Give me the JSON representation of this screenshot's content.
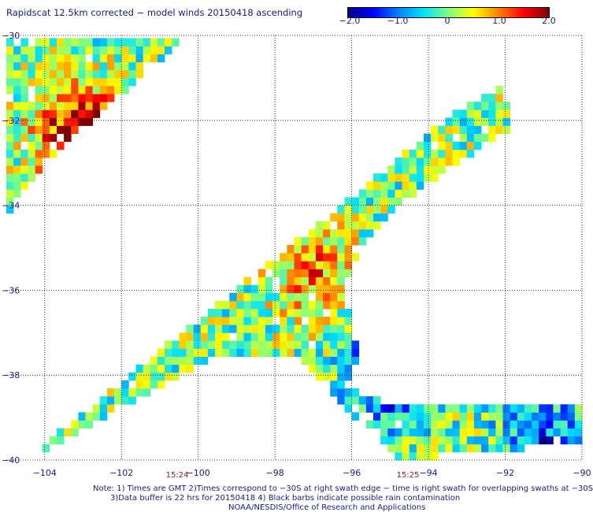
{
  "title": "Rapidscat 12.5km corrected − model winds 20150418 ascending",
  "colorbar": {
    "ticks": [
      "−2.0",
      "−1.0",
      "0",
      "1.0",
      "2.0"
    ],
    "range": [
      -2.0,
      2.0
    ],
    "colors": [
      "#00007f",
      "#0000ff",
      "#0080ff",
      "#00e0ff",
      "#80ff80",
      "#ffff00",
      "#ff8000",
      "#ff0000",
      "#7f0000"
    ]
  },
  "time_labels": [
    "15:24",
    "15:25"
  ],
  "notes": [
    "Note: 1) Times are GMT 2)Times correspond to −30S at right swath edge − time is right swath for overlapping swaths at −30S",
    "3)Data buffer is 22 hrs for 20150418 4) Black barbs indicate possible rain contamination",
    "NOAA/NESDIS/Office of Research and Applications"
  ],
  "chart_data": {
    "type": "heatmap",
    "title": "Rapidscat 12.5km corrected − model winds 20150418 ascending",
    "xlim": [
      -105,
      -90
    ],
    "ylim": [
      -40,
      -30
    ],
    "xticks": [
      -104,
      -102,
      -100,
      -98,
      -96,
      -94,
      -92,
      -90
    ],
    "xtick_labels": [
      "−104",
      "−102",
      "−100",
      "−98",
      "−96",
      "−94",
      "−92",
      "−90"
    ],
    "yticks": [
      -30,
      -32,
      -34,
      -36,
      -38,
      -40
    ],
    "ytick_labels": [
      "−30",
      "−32",
      "−34",
      "−36",
      "−38",
      "−40"
    ],
    "grid": true,
    "value_range": [
      -2.0,
      2.0
    ],
    "swaths": [
      {
        "name": "",
        "polygon_lonlat": [
          [
            -105,
            -30.1
          ],
          [
            -100.4,
            -30.1
          ],
          [
            -102.8,
            -32.0
          ],
          [
            -104.6,
            -33.7
          ],
          [
            -105,
            -34.3
          ]
        ]
      },
      {
        "name": "",
        "polygon_lonlat": [
          [
            -105,
            -39.8
          ],
          [
            -104.5,
            -40
          ],
          [
            -98.5,
            -35.6
          ],
          [
            -96.8,
            -34.4
          ],
          [
            -95.3,
            -33.3
          ],
          [
            -93.6,
            -32.0
          ],
          [
            -92.0,
            -31.2
          ],
          [
            -91.9,
            -32.2
          ],
          [
            -94.5,
            -33.8
          ],
          [
            -95.8,
            -35.0
          ],
          [
            -96.2,
            -36.0
          ],
          [
            -95.8,
            -37.5
          ],
          [
            -96.2,
            -38.3
          ],
          [
            -95.3,
            -38.6
          ],
          [
            -90,
            -38.6
          ],
          [
            -90,
            -39.6
          ],
          [
            -94.8,
            -40
          ],
          [
            -97.5,
            -37.5
          ],
          [
            -99.6,
            -37.6
          ],
          [
            -101.5,
            -38.5
          ],
          [
            -104.5,
            -40
          ]
        ]
      }
    ],
    "features": [
      {
        "name": "",
        "lon": -103.0,
        "lat": -32.4,
        "value": 2.0
      },
      {
        "name": "",
        "lon": -97.0,
        "lat": -35.5,
        "value": 1.0
      },
      {
        "name": "",
        "lon": -95.0,
        "lat": -38.0,
        "value": -1.5
      },
      {
        "name": "",
        "lon": -91.0,
        "lat": -39.5,
        "value": -1.2
      }
    ]
  }
}
